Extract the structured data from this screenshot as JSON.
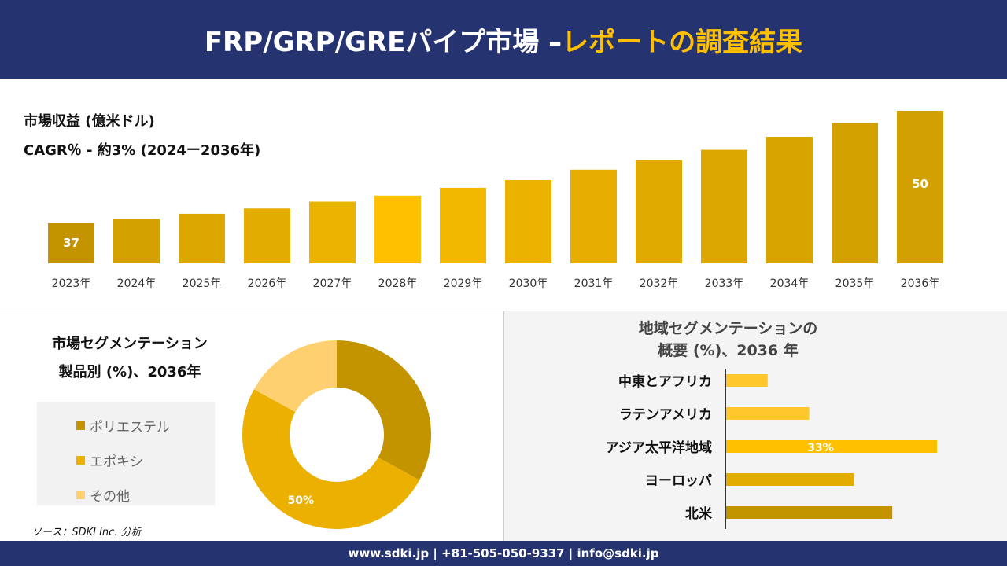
{
  "header": {
    "title_main": "FRP/GRP/GREパイプ市場 –",
    "title_accent": "レポートの調査結果"
  },
  "revenue": {
    "title": "市場収益 (億米ドル)",
    "cagr": "CAGR％ - 約3% (2024ー2036年)"
  },
  "segment": {
    "title_line1": "市場セグメンテーション",
    "title_line2": "製品別 (%)、2036年"
  },
  "region": {
    "title_line1": "地域セグメンテーションの",
    "title_line2": "概要 (%)、2036 年"
  },
  "source": "ソース：SDKI Inc. 分析",
  "footer": "www.sdki.jp | +81-505-050-9337 | info@sdki.jp",
  "chart_data": [
    {
      "type": "bar",
      "title": "市場収益 (億米ドル)",
      "categories": [
        "2023年",
        "2024年",
        "2025年",
        "2026年",
        "2027年",
        "2028年",
        "2029年",
        "2030年",
        "2031年",
        "2032年",
        "2033年",
        "2034年",
        "2035年",
        "2036年"
      ],
      "values": [
        37,
        37.5,
        38.1,
        38.7,
        39.5,
        40.2,
        41.1,
        42.0,
        43.2,
        44.3,
        45.5,
        47.0,
        48.6,
        50
      ],
      "data_labels": {
        "0": "37",
        "13": "50"
      },
      "colors": [
        "#C49300",
        "#D4A200",
        "#DCA800",
        "#E2AC00",
        "#EAB400",
        "#FFC000",
        "#F2B800",
        "#ECB200",
        "#E6AE00",
        "#E0AA00",
        "#DCA800",
        "#D8A400",
        "#D4A200",
        "#D2A000"
      ]
    },
    {
      "type": "pie",
      "subtype": "donut",
      "labels": [
        "ポリエステル",
        "エポキシ",
        "その他"
      ],
      "values": [
        33,
        50,
        17
      ],
      "data_labels": {
        "1": "50%"
      },
      "colors": [
        "#C49400",
        "#ECB000",
        "#FFD070"
      ]
    },
    {
      "type": "bar",
      "orientation": "horizontal",
      "categories": [
        "中東とアフリカ",
        "ラテンアメリカ",
        "アジア太平洋地域",
        "ヨーロッパ",
        "北米"
      ],
      "values": [
        6.5,
        13,
        33,
        20,
        26
      ],
      "data_labels": {
        "2": "33%"
      },
      "colors": [
        "#FFC72C",
        "#FFC72C",
        "#FFC000",
        "#E2AC00",
        "#C49300"
      ]
    }
  ]
}
